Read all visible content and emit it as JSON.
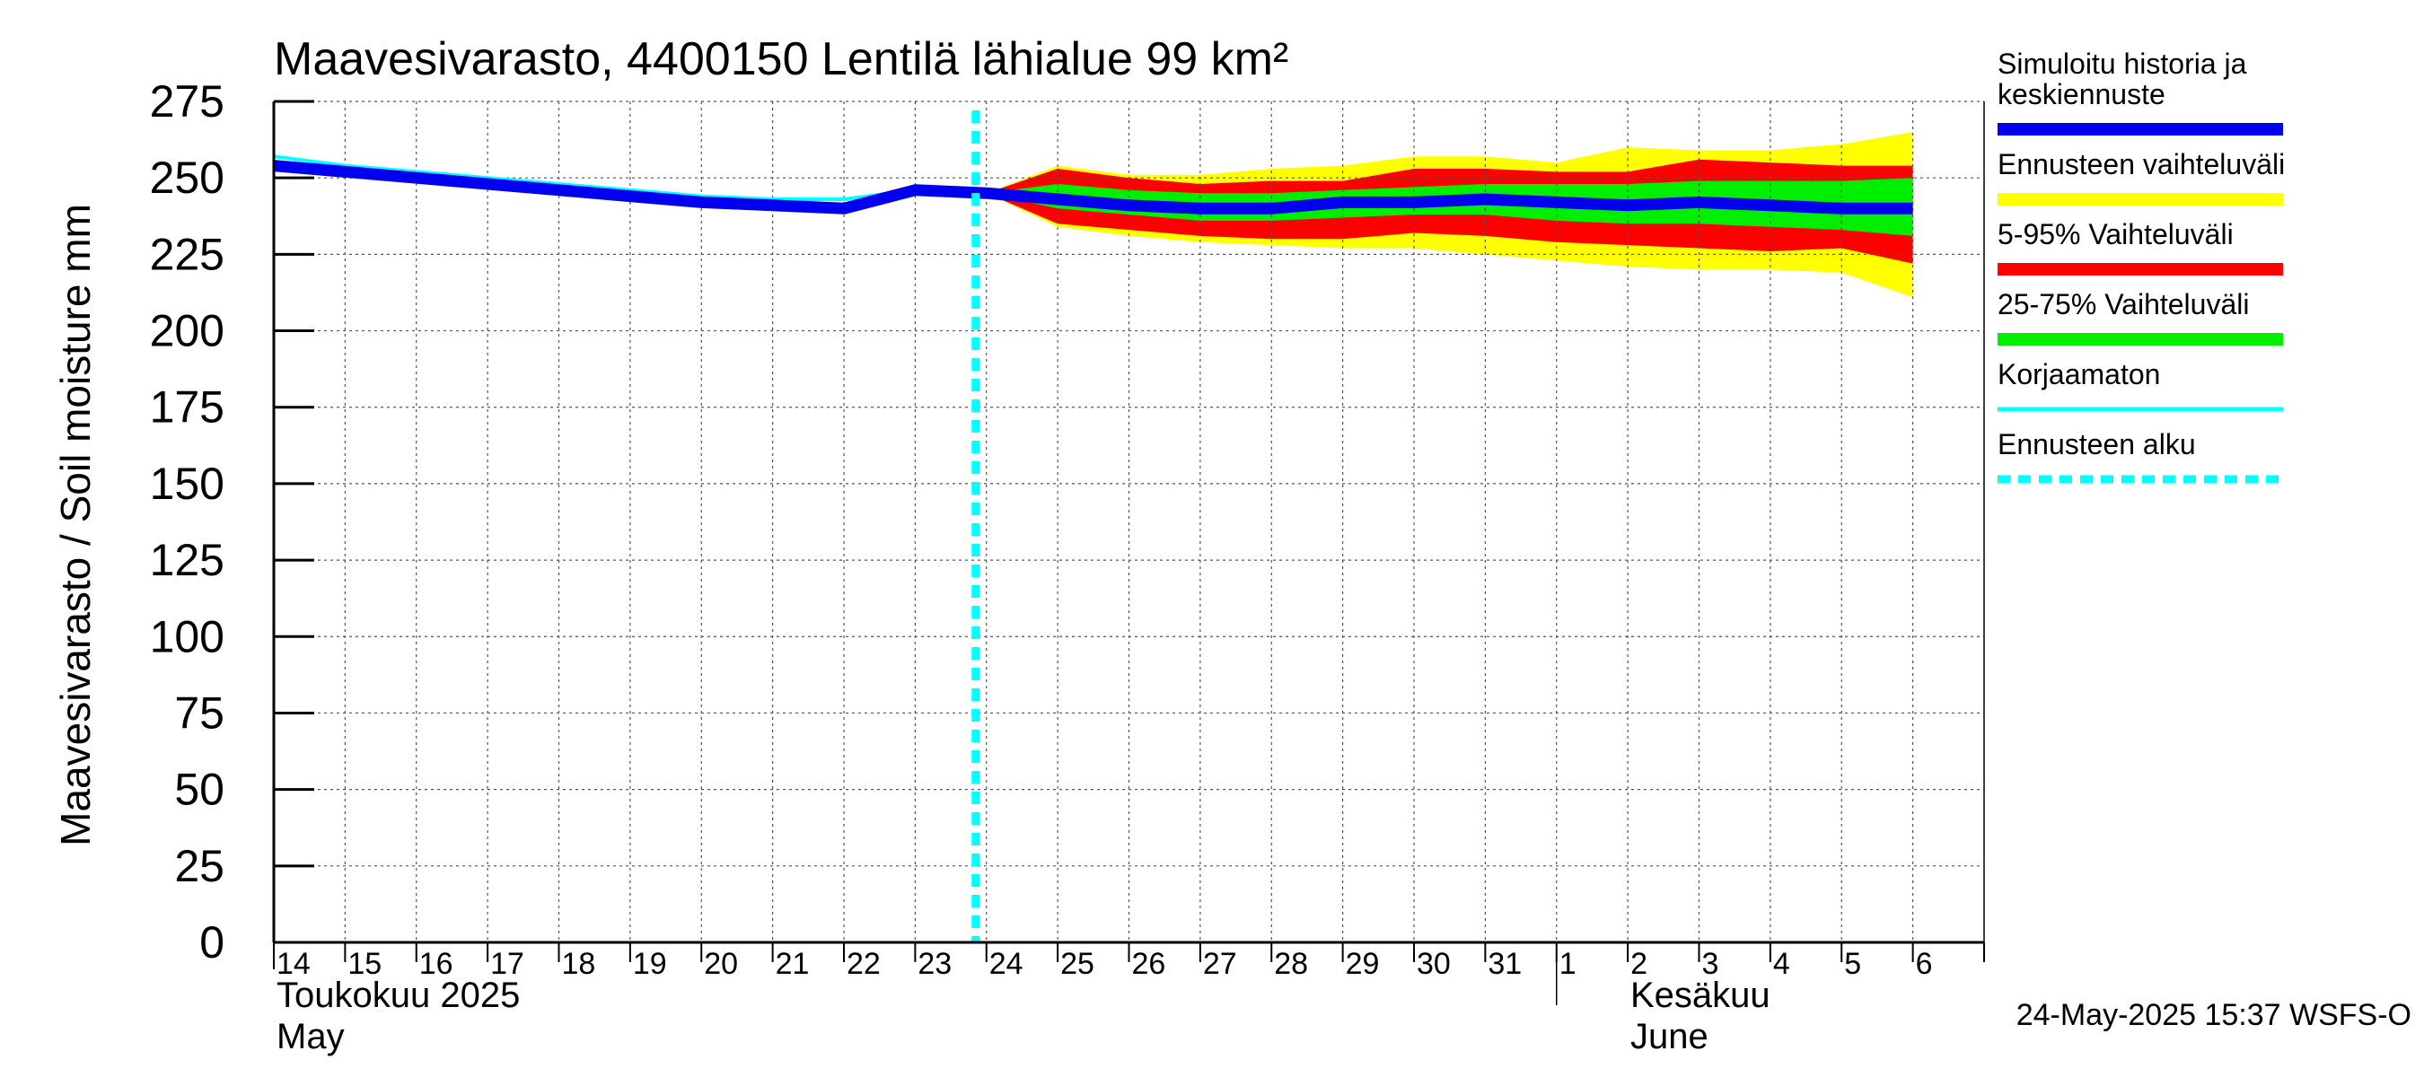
{
  "chart_data": {
    "type": "area",
    "title": "Maavesivarasto, 4400150 Lentilä lähialue 99 km²",
    "ylabel": "Maavesivarasto / Soil moisture   mm",
    "ylim": [
      0,
      275
    ],
    "yticks": [
      0,
      25,
      50,
      75,
      100,
      125,
      150,
      175,
      200,
      225,
      250,
      275
    ],
    "grid": true,
    "legend_position": "right",
    "x_start": "2025-05-14",
    "x_end": "2025-06-06",
    "day_labels": [
      "14",
      "15",
      "16",
      "17",
      "18",
      "19",
      "20",
      "21",
      "22",
      "23",
      "24",
      "25",
      "26",
      "27",
      "28",
      "29",
      "30",
      "31",
      "1",
      "2",
      "3",
      "4",
      "5",
      "6"
    ],
    "month_labels": [
      {
        "fi": "Toukokuu  2025",
        "en": "May",
        "date": "2025-05-14"
      },
      {
        "fi": "Kesäkuu",
        "en": "June",
        "date": "2025-06-02"
      }
    ],
    "forecast_start": "2025-05-24",
    "dates": [
      "2025-05-14",
      "2025-05-15",
      "2025-05-16",
      "2025-05-17",
      "2025-05-18",
      "2025-05-19",
      "2025-05-20",
      "2025-05-21",
      "2025-05-22",
      "2025-05-23",
      "2025-05-24",
      "2025-05-25",
      "2025-05-26",
      "2025-05-27",
      "2025-05-28",
      "2025-05-29",
      "2025-05-30",
      "2025-05-31",
      "2025-06-01",
      "2025-06-02",
      "2025-06-03",
      "2025-06-04",
      "2025-06-05",
      "2025-06-06"
    ],
    "series": [
      {
        "name": "Simuloitu historia ja keskiennuste",
        "color": "#0000ee",
        "values": [
          254,
          252,
          250,
          248,
          246,
          244,
          242,
          241,
          240,
          246,
          245,
          243,
          241,
          240,
          240,
          242,
          242,
          243,
          242,
          241,
          242,
          241,
          240,
          240
        ]
      },
      {
        "name": "Korjaamaton",
        "color": "#00ffff",
        "values": [
          257,
          254,
          252,
          250,
          248,
          246,
          244,
          243,
          243,
          246,
          245,
          null,
          null,
          null,
          null,
          null,
          null,
          null,
          null,
          null,
          null,
          null,
          null,
          null
        ]
      }
    ],
    "bands": [
      {
        "name": "Ennusteen vaihteluväli",
        "color": "#ffff00",
        "start": "2025-05-24",
        "upper": [
          245,
          254,
          251,
          251,
          253,
          254,
          257,
          257,
          255,
          260,
          259,
          259,
          261,
          265
        ],
        "lower": [
          245,
          234,
          231,
          229,
          228,
          227,
          227,
          225,
          223,
          221,
          220,
          220,
          219,
          211
        ]
      },
      {
        "name": "5-95% Vaihteluväli",
        "color": "#ff0000",
        "start": "2025-05-24",
        "upper": [
          245,
          253,
          250,
          248,
          249,
          249,
          253,
          253,
          252,
          252,
          256,
          255,
          254,
          254
        ],
        "lower": [
          245,
          235,
          233,
          231,
          230,
          230,
          232,
          231,
          229,
          228,
          227,
          226,
          227,
          222
        ]
      },
      {
        "name": "25-75% Vaihteluväli",
        "color": "#00ee00",
        "start": "2025-05-24",
        "upper": [
          245,
          248,
          246,
          245,
          245,
          246,
          247,
          248,
          248,
          248,
          249,
          249,
          249,
          250
        ],
        "lower": [
          245,
          240,
          238,
          236,
          236,
          237,
          238,
          238,
          236,
          235,
          235,
          234,
          233,
          231
        ]
      }
    ],
    "legend": [
      {
        "label": "Simuloitu historia ja keskiennuste",
        "color": "#0000ee",
        "style": "thick"
      },
      {
        "label": "Ennusteen vaihteluväli",
        "color": "#ffff00",
        "style": "thick"
      },
      {
        "label": "5-95% Vaihteluväli",
        "color": "#ff0000",
        "style": "thick"
      },
      {
        "label": "25-75% Vaihteluväli",
        "color": "#00ee00",
        "style": "thick"
      },
      {
        "label": "Korjaamaton",
        "color": "#00ffff",
        "style": "thin"
      },
      {
        "label": "Ennusteen alku",
        "color": "#00ffff",
        "style": "dashed"
      }
    ],
    "footer": "24-May-2025 15:37 WSFS-O"
  }
}
